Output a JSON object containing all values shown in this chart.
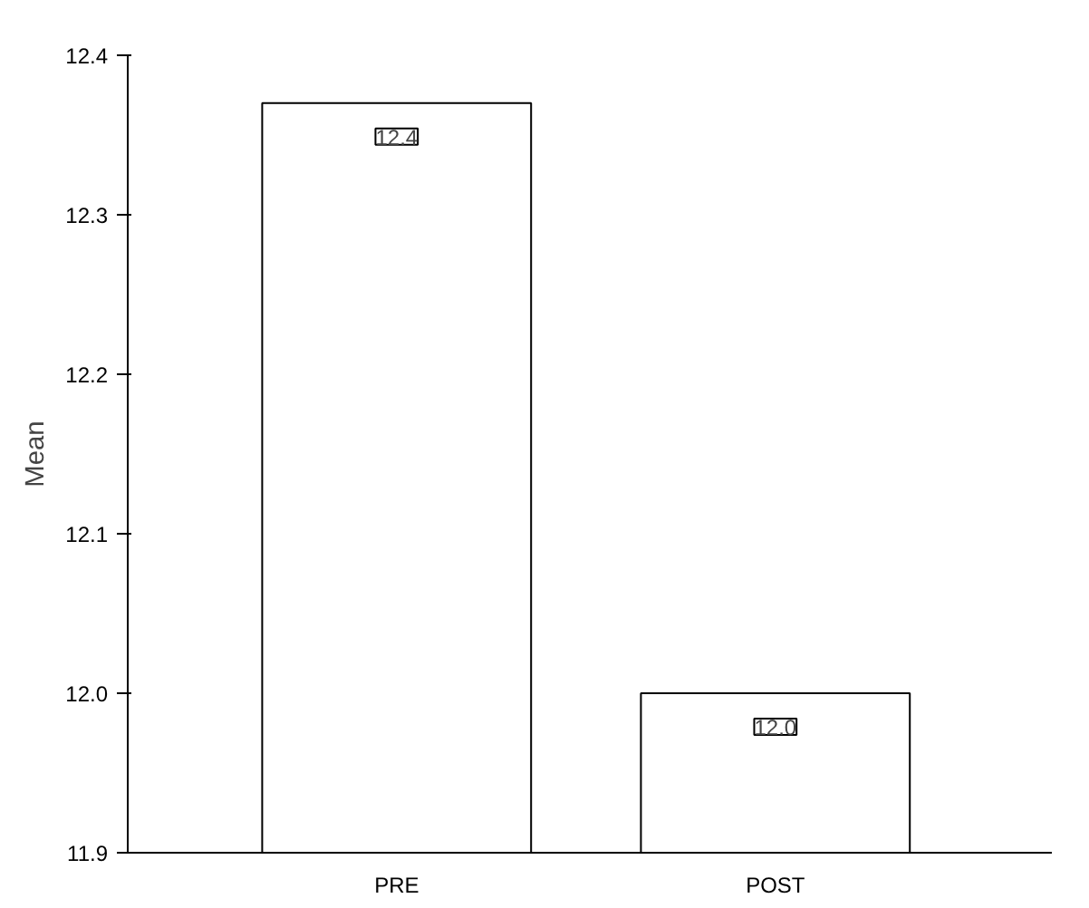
{
  "chart_data": {
    "type": "bar",
    "ylabel": "Mean",
    "categories": [
      "PRE",
      "POST"
    ],
    "values": [
      12.37,
      12.0
    ],
    "value_labels": [
      "12.4",
      "12.0"
    ],
    "color": "#ffffff",
    "ylim": [
      11.9,
      12.4
    ],
    "yticks": [
      11.9,
      {
        "value": 12.0,
        "label": "12.0"
      },
      12.1,
      12.2,
      12.3,
      12.4
    ]
  }
}
